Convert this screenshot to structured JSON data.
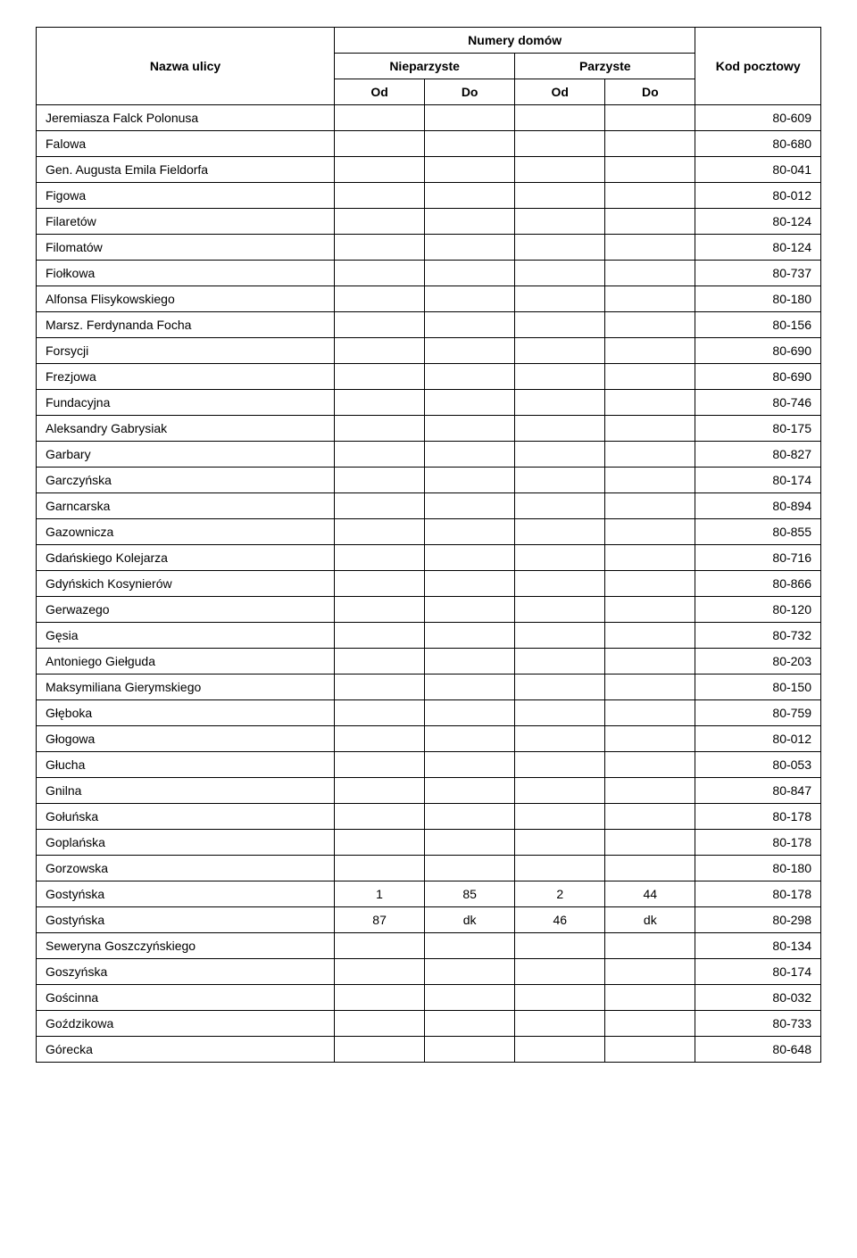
{
  "headers": {
    "nazwa": "Nazwa ulicy",
    "numery": "Numery domów",
    "nieparzyste": "Nieparzyste",
    "parzyste": "Parzyste",
    "od": "Od",
    "do": "Do",
    "kod": "Kod pocztowy"
  },
  "rows": [
    {
      "street": "Jeremiasza Falck Polonusa",
      "n_od": "",
      "n_do": "",
      "p_od": "",
      "p_do": "",
      "code": "80-609"
    },
    {
      "street": "Falowa",
      "n_od": "",
      "n_do": "",
      "p_od": "",
      "p_do": "",
      "code": "80-680"
    },
    {
      "street": "Gen. Augusta Emila Fieldorfa",
      "n_od": "",
      "n_do": "",
      "p_od": "",
      "p_do": "",
      "code": "80-041"
    },
    {
      "street": "Figowa",
      "n_od": "",
      "n_do": "",
      "p_od": "",
      "p_do": "",
      "code": "80-012"
    },
    {
      "street": "Filaretów",
      "n_od": "",
      "n_do": "",
      "p_od": "",
      "p_do": "",
      "code": "80-124"
    },
    {
      "street": "Filomatów",
      "n_od": "",
      "n_do": "",
      "p_od": "",
      "p_do": "",
      "code": "80-124"
    },
    {
      "street": "Fiołkowa",
      "n_od": "",
      "n_do": "",
      "p_od": "",
      "p_do": "",
      "code": "80-737"
    },
    {
      "street": "Alfonsa Flisykowskiego",
      "n_od": "",
      "n_do": "",
      "p_od": "",
      "p_do": "",
      "code": "80-180"
    },
    {
      "street": "Marsz. Ferdynanda Focha",
      "n_od": "",
      "n_do": "",
      "p_od": "",
      "p_do": "",
      "code": "80-156"
    },
    {
      "street": "Forsycji",
      "n_od": "",
      "n_do": "",
      "p_od": "",
      "p_do": "",
      "code": "80-690"
    },
    {
      "street": "Frezjowa",
      "n_od": "",
      "n_do": "",
      "p_od": "",
      "p_do": "",
      "code": "80-690"
    },
    {
      "street": "Fundacyjna",
      "n_od": "",
      "n_do": "",
      "p_od": "",
      "p_do": "",
      "code": "80-746"
    },
    {
      "street": "Aleksandry Gabrysiak",
      "n_od": "",
      "n_do": "",
      "p_od": "",
      "p_do": "",
      "code": "80-175"
    },
    {
      "street": "Garbary",
      "n_od": "",
      "n_do": "",
      "p_od": "",
      "p_do": "",
      "code": "80-827"
    },
    {
      "street": "Garczyńska",
      "n_od": "",
      "n_do": "",
      "p_od": "",
      "p_do": "",
      "code": "80-174"
    },
    {
      "street": "Garncarska",
      "n_od": "",
      "n_do": "",
      "p_od": "",
      "p_do": "",
      "code": "80-894"
    },
    {
      "street": "Gazownicza",
      "n_od": "",
      "n_do": "",
      "p_od": "",
      "p_do": "",
      "code": "80-855"
    },
    {
      "street": "Gdańskiego Kolejarza",
      "n_od": "",
      "n_do": "",
      "p_od": "",
      "p_do": "",
      "code": "80-716"
    },
    {
      "street": "Gdyńskich Kosynierów",
      "n_od": "",
      "n_do": "",
      "p_od": "",
      "p_do": "",
      "code": "80-866"
    },
    {
      "street": "Gerwazego",
      "n_od": "",
      "n_do": "",
      "p_od": "",
      "p_do": "",
      "code": "80-120"
    },
    {
      "street": "Gęsia",
      "n_od": "",
      "n_do": "",
      "p_od": "",
      "p_do": "",
      "code": "80-732"
    },
    {
      "street": "Antoniego Giełguda",
      "n_od": "",
      "n_do": "",
      "p_od": "",
      "p_do": "",
      "code": "80-203"
    },
    {
      "street": "Maksymiliana Gierymskiego",
      "n_od": "",
      "n_do": "",
      "p_od": "",
      "p_do": "",
      "code": "80-150"
    },
    {
      "street": "Głęboka",
      "n_od": "",
      "n_do": "",
      "p_od": "",
      "p_do": "",
      "code": "80-759"
    },
    {
      "street": "Głogowa",
      "n_od": "",
      "n_do": "",
      "p_od": "",
      "p_do": "",
      "code": "80-012"
    },
    {
      "street": "Głucha",
      "n_od": "",
      "n_do": "",
      "p_od": "",
      "p_do": "",
      "code": "80-053"
    },
    {
      "street": "Gnilna",
      "n_od": "",
      "n_do": "",
      "p_od": "",
      "p_do": "",
      "code": "80-847"
    },
    {
      "street": "Gołuńska",
      "n_od": "",
      "n_do": "",
      "p_od": "",
      "p_do": "",
      "code": "80-178"
    },
    {
      "street": "Goplańska",
      "n_od": "",
      "n_do": "",
      "p_od": "",
      "p_do": "",
      "code": "80-178"
    },
    {
      "street": "Gorzowska",
      "n_od": "",
      "n_do": "",
      "p_od": "",
      "p_do": "",
      "code": "80-180"
    },
    {
      "street": "Gostyńska",
      "n_od": "1",
      "n_do": "85",
      "p_od": "2",
      "p_do": "44",
      "code": "80-178"
    },
    {
      "street": "Gostyńska",
      "n_od": "87",
      "n_do": "dk",
      "p_od": "46",
      "p_do": "dk",
      "code": "80-298"
    },
    {
      "street": "Seweryna Goszczyńskiego",
      "n_od": "",
      "n_do": "",
      "p_od": "",
      "p_do": "",
      "code": "80-134"
    },
    {
      "street": "Goszyńska",
      "n_od": "",
      "n_do": "",
      "p_od": "",
      "p_do": "",
      "code": "80-174"
    },
    {
      "street": "Gościnna",
      "n_od": "",
      "n_do": "",
      "p_od": "",
      "p_do": "",
      "code": "80-032"
    },
    {
      "street": "Goździkowa",
      "n_od": "",
      "n_do": "",
      "p_od": "",
      "p_do": "",
      "code": "80-733"
    },
    {
      "street": "Górecka",
      "n_od": "",
      "n_do": "",
      "p_od": "",
      "p_do": "",
      "code": "80-648"
    }
  ]
}
